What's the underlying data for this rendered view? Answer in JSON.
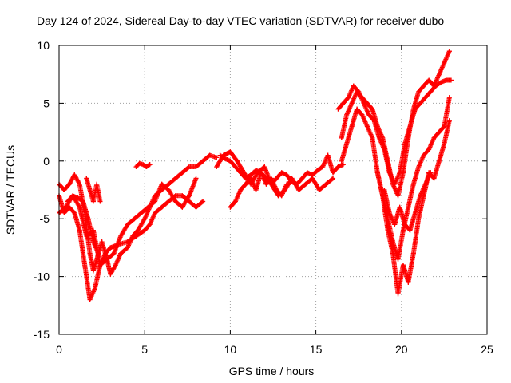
{
  "chart_data": {
    "type": "scatter",
    "title": "Day 124 of 2024, Sidereal Day-to-day VTEC variation (SDTVAR) for receiver dubo",
    "xlabel": "GPS time / hours",
    "ylabel": "SDTVAR / TECUs",
    "xlim": [
      0,
      25
    ],
    "ylim": [
      -15,
      10
    ],
    "x_ticks": [
      0,
      5,
      10,
      15,
      20,
      25
    ],
    "y_ticks": [
      -15,
      -10,
      -5,
      0,
      5,
      10
    ],
    "x_tick_labels": [
      "0",
      "5",
      "10",
      "15",
      "20",
      "25"
    ],
    "y_tick_labels": [
      "-15",
      "-10",
      "-5",
      "0",
      "5",
      "10"
    ],
    "grid": true,
    "marker": "+",
    "series": [
      {
        "color": "#ff0000",
        "x": [
          0.0,
          0.3,
          0.6,
          0.9,
          1.2,
          1.5,
          1.8,
          2.0,
          2.2,
          2.5,
          2.8,
          3.0,
          3.3,
          3.6,
          4.0,
          4.3,
          4.6,
          5.0,
          5.3,
          5.6,
          6.0,
          6.4,
          6.8,
          7.2,
          7.6,
          8.0,
          8.4,
          8.8,
          9.2
        ],
        "y": [
          -2.0,
          -2.5,
          -2.0,
          -1.2,
          -2.0,
          -4.5,
          -8.0,
          -9.5,
          -8.5,
          -7.0,
          -8.5,
          -9.8,
          -9.0,
          -8.0,
          -7.5,
          -6.5,
          -6.0,
          -5.0,
          -4.0,
          -3.0,
          -2.5,
          -2.0,
          -1.5,
          -1.0,
          -0.5,
          -0.5,
          0.0,
          0.5,
          0.3
        ]
      },
      {
        "color": "#ff0000",
        "x": [
          0.0,
          0.3,
          0.6,
          0.9,
          1.2,
          1.5,
          1.8,
          2.1,
          2.4,
          2.7,
          3.0,
          3.5,
          4.0,
          4.5,
          5.0,
          5.3,
          5.6,
          6.0,
          6.4,
          6.8,
          7.2,
          7.6,
          8.0,
          8.4
        ],
        "y": [
          -3.0,
          -4.5,
          -4.0,
          -4.5,
          -6.0,
          -9.0,
          -12.0,
          -11.0,
          -9.0,
          -8.0,
          -7.5,
          -7.2,
          -7.0,
          -6.5,
          -6.0,
          -5.5,
          -4.5,
          -4.0,
          -3.5,
          -3.0,
          -3.0,
          -3.5,
          -4.0,
          -3.5
        ]
      },
      {
        "color": "#ff0000",
        "x": [
          0.0,
          0.4,
          0.8,
          1.2,
          1.6,
          2.0,
          2.4,
          2.8,
          3.2,
          3.6,
          4.0,
          4.4,
          4.8,
          5.2,
          5.6,
          6.0,
          6.4,
          6.8,
          7.2,
          7.6,
          8.0
        ],
        "y": [
          -4.5,
          -4.0,
          -3.0,
          -4.0,
          -6.5,
          -6.0,
          -9.0,
          -8.5,
          -8.0,
          -6.5,
          -5.5,
          -5.0,
          -4.5,
          -4.0,
          -3.5,
          -2.0,
          -2.5,
          -3.5,
          -4.0,
          -3.0,
          -1.5
        ]
      },
      {
        "color": "#ff0000",
        "x": [
          0.5,
          0.8,
          1.1,
          1.4,
          1.7,
          2.0,
          2.3
        ],
        "y": [
          -3.5,
          -3.0,
          -3.2,
          -3.5,
          -5.0,
          -7.0,
          -8.0
        ]
      },
      {
        "color": "#ff0000",
        "x": [
          1.6,
          1.8,
          2.0,
          2.2,
          2.4
        ],
        "y": [
          -1.5,
          -2.5,
          -3.5,
          -2.0,
          -3.5
        ]
      },
      {
        "color": "#ff0000",
        "x": [
          4.5,
          4.7,
          4.9,
          5.1,
          5.3
        ],
        "y": [
          -0.5,
          -0.2,
          -0.3,
          -0.5,
          -0.3
        ]
      },
      {
        "color": "#ff0000",
        "x": [
          9.4,
          9.7,
          10.0,
          10.3,
          10.6,
          10.9,
          11.2,
          11.5,
          11.8,
          12.1,
          12.4,
          12.7,
          13.0,
          13.3,
          13.6,
          13.9,
          14.2,
          14.5,
          14.8,
          15.1,
          15.4,
          15.7,
          16.0,
          16.3,
          16.6
        ],
        "y": [
          0.5,
          0.2,
          0.0,
          -0.5,
          -1.0,
          -1.5,
          -1.2,
          -0.8,
          -1.0,
          -1.5,
          -2.0,
          -1.5,
          -1.0,
          -1.2,
          -1.8,
          -2.0,
          -1.5,
          -1.0,
          -1.2,
          -0.8,
          -0.5,
          0.5,
          -1.0,
          -0.5,
          -0.3
        ]
      },
      {
        "color": "#ff0000",
        "x": [
          9.2,
          9.6,
          10.0,
          10.4,
          10.8,
          11.2,
          11.6,
          12.0,
          12.4,
          12.8,
          13.2,
          13.6,
          14.0,
          14.4,
          14.8,
          15.2,
          15.6,
          16.0
        ],
        "y": [
          -0.5,
          0.5,
          0.8,
          0.0,
          -1.0,
          -2.0,
          -1.0,
          -0.5,
          -2.0,
          -3.0,
          -2.5,
          -1.5,
          -2.5,
          -2.0,
          -1.5,
          -2.5,
          -2.0,
          -1.5
        ]
      },
      {
        "color": "#ff0000",
        "x": [
          10.0,
          10.3,
          10.6,
          10.9,
          11.2,
          11.5,
          11.8,
          12.1,
          12.4,
          12.7,
          13.0,
          13.3
        ],
        "y": [
          -4.0,
          -3.5,
          -2.5,
          -2.0,
          -1.5,
          -2.5,
          -1.0,
          -2.0,
          -1.5,
          -2.5,
          -3.0,
          -2.0
        ]
      },
      {
        "color": "#ff0000",
        "x": [
          16.3,
          16.6,
          16.9,
          17.2,
          17.5,
          17.8,
          18.1,
          18.4,
          18.7,
          19.0,
          19.3,
          19.6,
          19.9,
          20.2,
          20.5,
          20.8,
          21.1,
          21.4,
          21.7,
          22.0,
          22.3,
          22.6,
          22.9
        ],
        "y": [
          4.5,
          5.0,
          5.5,
          6.5,
          6.0,
          5.0,
          4.0,
          3.5,
          2.0,
          1.0,
          -1.0,
          -2.0,
          -1.0,
          1.5,
          3.0,
          4.5,
          5.0,
          5.5,
          6.0,
          6.5,
          6.8,
          7.0,
          7.0
        ]
      },
      {
        "color": "#ff0000",
        "x": [
          16.5,
          16.8,
          17.1,
          17.4,
          17.7,
          18.0,
          18.3,
          18.6,
          18.9,
          19.2,
          19.5,
          19.8,
          20.1,
          20.4,
          20.7,
          21.0,
          21.3,
          21.6,
          21.9,
          22.2,
          22.5,
          22.8
        ],
        "y": [
          2.0,
          4.0,
          5.0,
          6.0,
          5.5,
          5.0,
          4.5,
          3.0,
          2.0,
          0.0,
          -2.0,
          -3.0,
          -1.0,
          2.0,
          4.5,
          6.0,
          6.5,
          7.0,
          6.5,
          7.5,
          8.5,
          9.5
        ]
      },
      {
        "color": "#ff0000",
        "x": [
          16.5,
          16.8,
          17.1,
          17.4,
          17.7,
          18.0,
          18.3,
          18.6,
          18.9,
          19.2,
          19.5,
          19.8,
          20.1,
          20.4,
          20.7,
          21.0,
          21.3,
          21.6,
          21.9,
          22.2,
          22.5,
          22.8
        ],
        "y": [
          0.0,
          1.5,
          3.0,
          4.5,
          4.0,
          3.0,
          2.0,
          -1.0,
          -3.0,
          -5.0,
          -7.0,
          -8.5,
          -6.0,
          -4.0,
          -2.0,
          -0.5,
          0.5,
          1.0,
          2.0,
          2.5,
          3.0,
          5.5
        ]
      },
      {
        "color": "#ff0000",
        "x": [
          18.6,
          18.9,
          19.2,
          19.5,
          19.8,
          20.1,
          20.4,
          20.7,
          21.0,
          21.3,
          21.6,
          21.9,
          22.2,
          22.5,
          22.8
        ],
        "y": [
          -1.0,
          -3.0,
          -6.0,
          -8.0,
          -11.5,
          -9.0,
          -10.5,
          -8.0,
          -5.0,
          -3.0,
          -1.0,
          -1.5,
          0.0,
          1.5,
          3.5
        ]
      },
      {
        "color": "#ff0000",
        "x": [
          19.0,
          19.3,
          19.6,
          19.9,
          20.2,
          20.5,
          20.8,
          21.1,
          21.4,
          21.7
        ],
        "y": [
          -2.5,
          -4.5,
          -5.5,
          -4.0,
          -5.5,
          -6.0,
          -4.5,
          -3.0,
          -2.0,
          -1.0
        ]
      }
    ]
  }
}
